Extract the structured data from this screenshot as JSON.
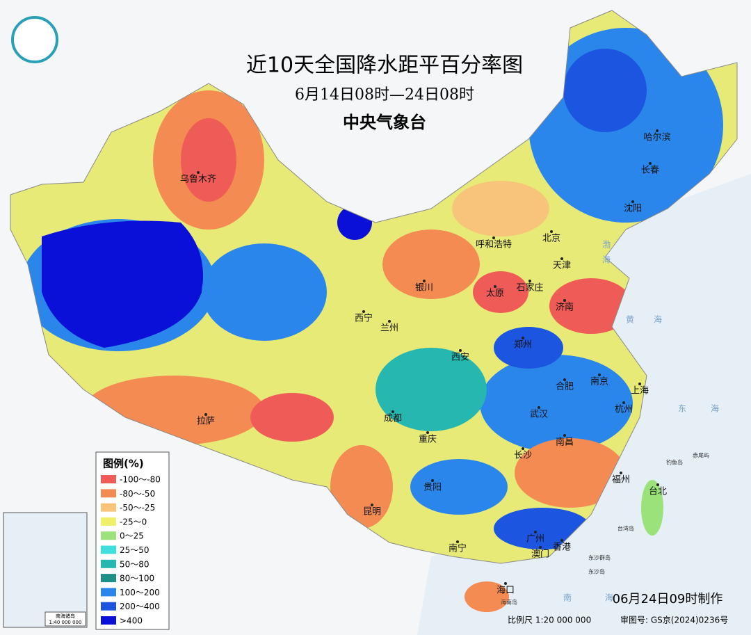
{
  "header": {
    "title": "近10天全国降水距平百分率图",
    "subtitle": "6月14日08时—24日08时",
    "agency": "中央气象台"
  },
  "legend": {
    "title": "图例(%)",
    "items": [
      {
        "label": "-100～-80",
        "color": "#ef5b57"
      },
      {
        "label": "-80～-50",
        "color": "#f48b52"
      },
      {
        "label": "-50～-25",
        "color": "#f8c37a"
      },
      {
        "label": "-25～0",
        "color": "#eef06a"
      },
      {
        "label": "0～25",
        "color": "#9be27a"
      },
      {
        "label": "25～50",
        "color": "#3fe0dc"
      },
      {
        "label": "50～80",
        "color": "#26b8b0"
      },
      {
        "label": "80～100",
        "color": "#1e8f86"
      },
      {
        "label": "100～200",
        "color": "#2a86ea"
      },
      {
        "label": "200～400",
        "color": "#1c55e0"
      },
      {
        "label": ">400",
        "color": "#0a10d8"
      }
    ]
  },
  "cities": [
    "乌鲁木齐",
    "呼和浩特",
    "北京",
    "天津",
    "哈尔滨",
    "长春",
    "沈阳",
    "石家庄",
    "太原",
    "银川",
    "西宁",
    "兰州",
    "济南",
    "郑州",
    "西安",
    "合肥",
    "南京",
    "上海",
    "杭州",
    "武汉",
    "成都",
    "重庆",
    "拉萨",
    "长沙",
    "南昌",
    "贵阳",
    "昆明",
    "福州",
    "台北",
    "南宁",
    "广州",
    "香港",
    "澳门",
    "海口"
  ],
  "seas": [
    "渤",
    "海",
    "黄",
    "海",
    "东",
    "海",
    "南",
    "海"
  ],
  "islands": [
    "钓鱼岛",
    "赤尾屿",
    "台湾岛",
    "东沙群岛",
    "东沙岛",
    "海南岛"
  ],
  "inset": {
    "title": "南海诸岛",
    "scale": "1:40 000 000"
  },
  "footer": {
    "made": "06月24日09时制作",
    "scale": "比例尺 1:20 000 000",
    "approval": "审图号: GS京(2024)0236号"
  }
}
